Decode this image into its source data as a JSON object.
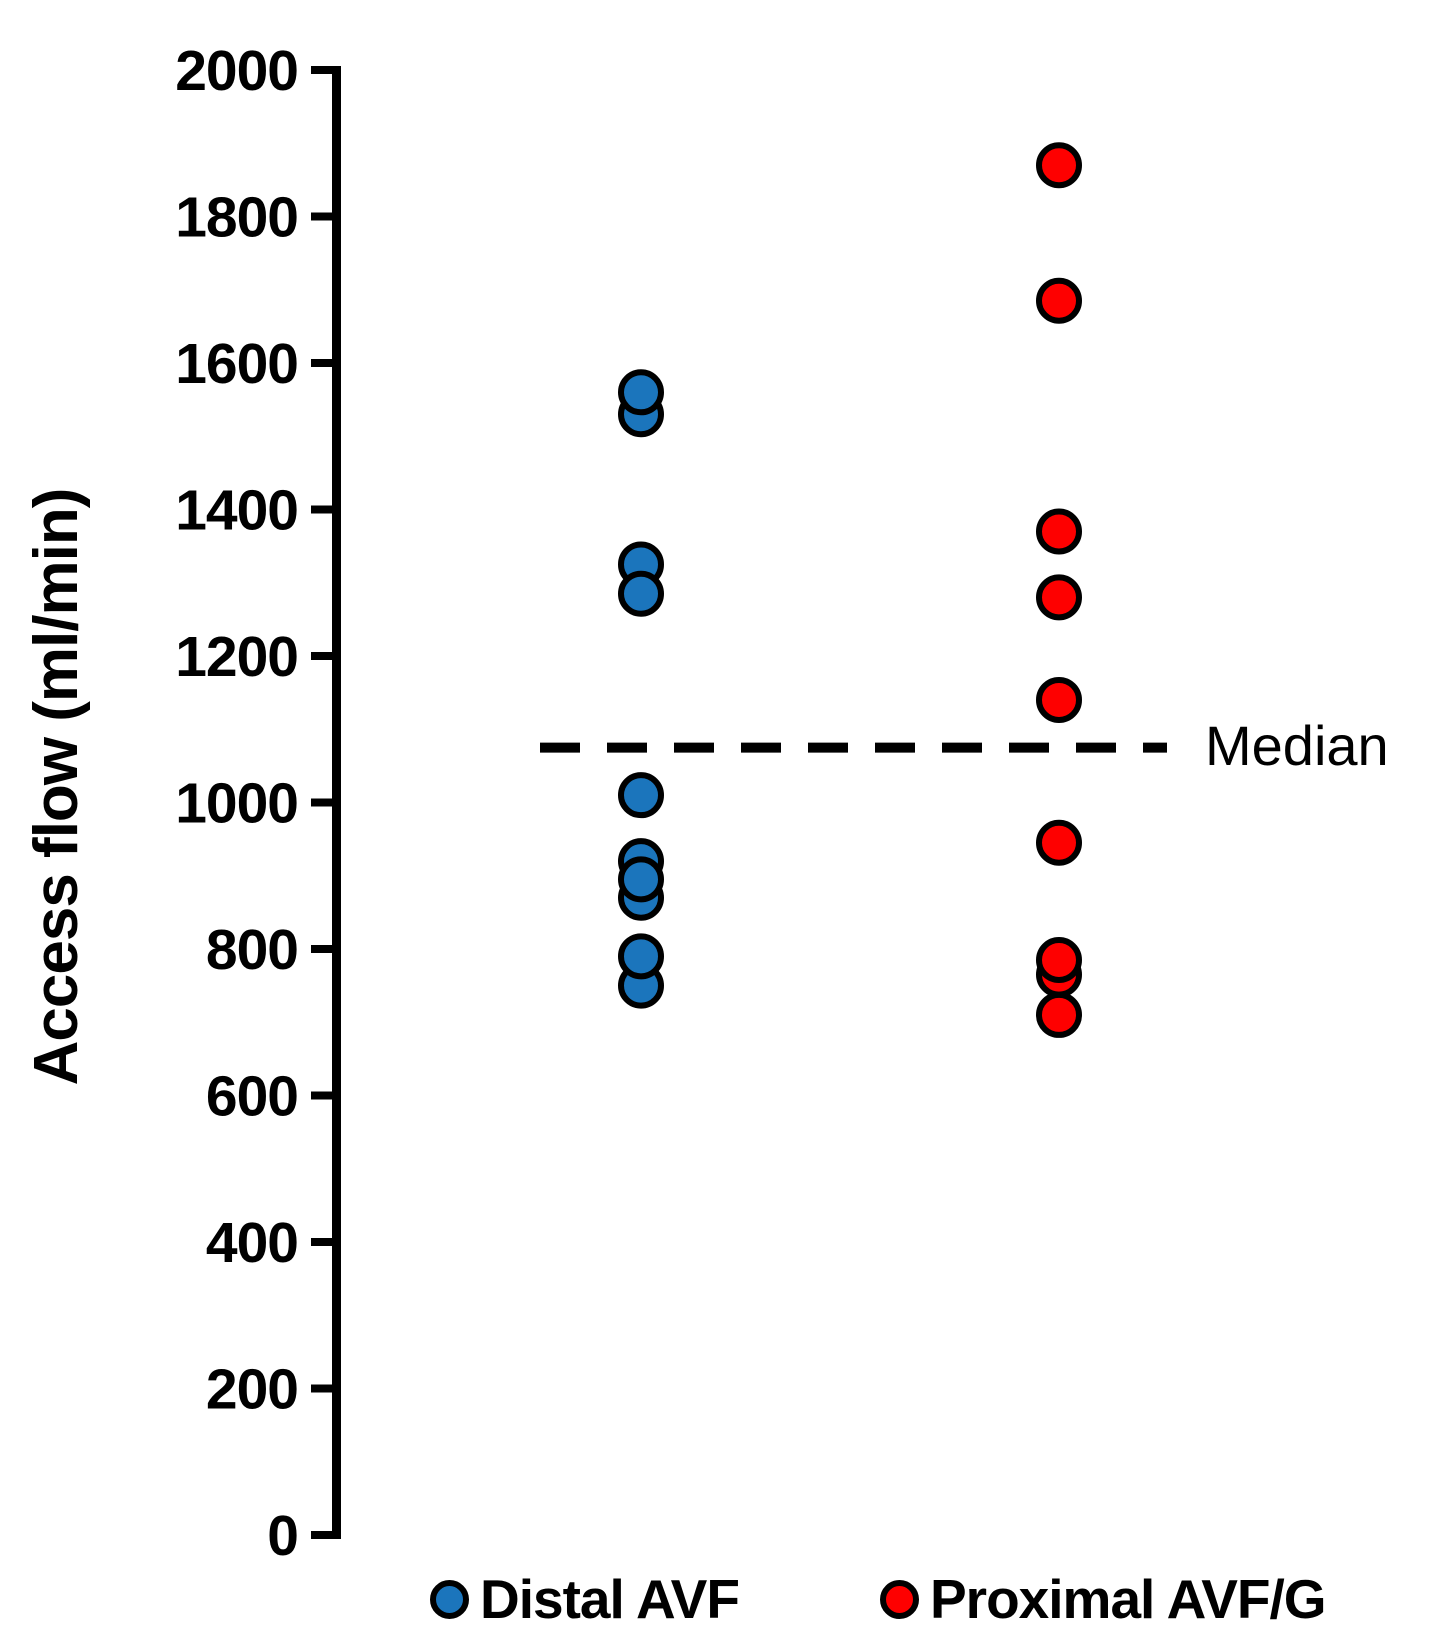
{
  "y_axis": {
    "title": "Access flow (ml/min)",
    "tick_labels": [
      "2000",
      "1800",
      "1600",
      "1400",
      "1200",
      "1000",
      "800",
      "600",
      "400",
      "200",
      "0"
    ]
  },
  "chart_data": {
    "type": "scatter",
    "title": "",
    "xlabel": "",
    "ylabel": "Access flow (ml/min)",
    "ylim": [
      0,
      2000
    ],
    "ytick_interval": 200,
    "grid": false,
    "legend_position": "bottom",
    "series": [
      {
        "name": "Distal AVF",
        "color": "#1B75BC",
        "marker": "circle",
        "values": [
          1530,
          1560,
          1325,
          1285,
          1010,
          920,
          870,
          895,
          750,
          790
        ]
      },
      {
        "name": "Proximal AVF/G",
        "color": "#FE0000",
        "marker": "circle",
        "values": [
          1870,
          1685,
          1370,
          1280,
          1140,
          945,
          765,
          785,
          710
        ]
      }
    ],
    "annotations": [
      {
        "type": "dashed_hline",
        "label": "Median",
        "y": 1075
      }
    ]
  }
}
